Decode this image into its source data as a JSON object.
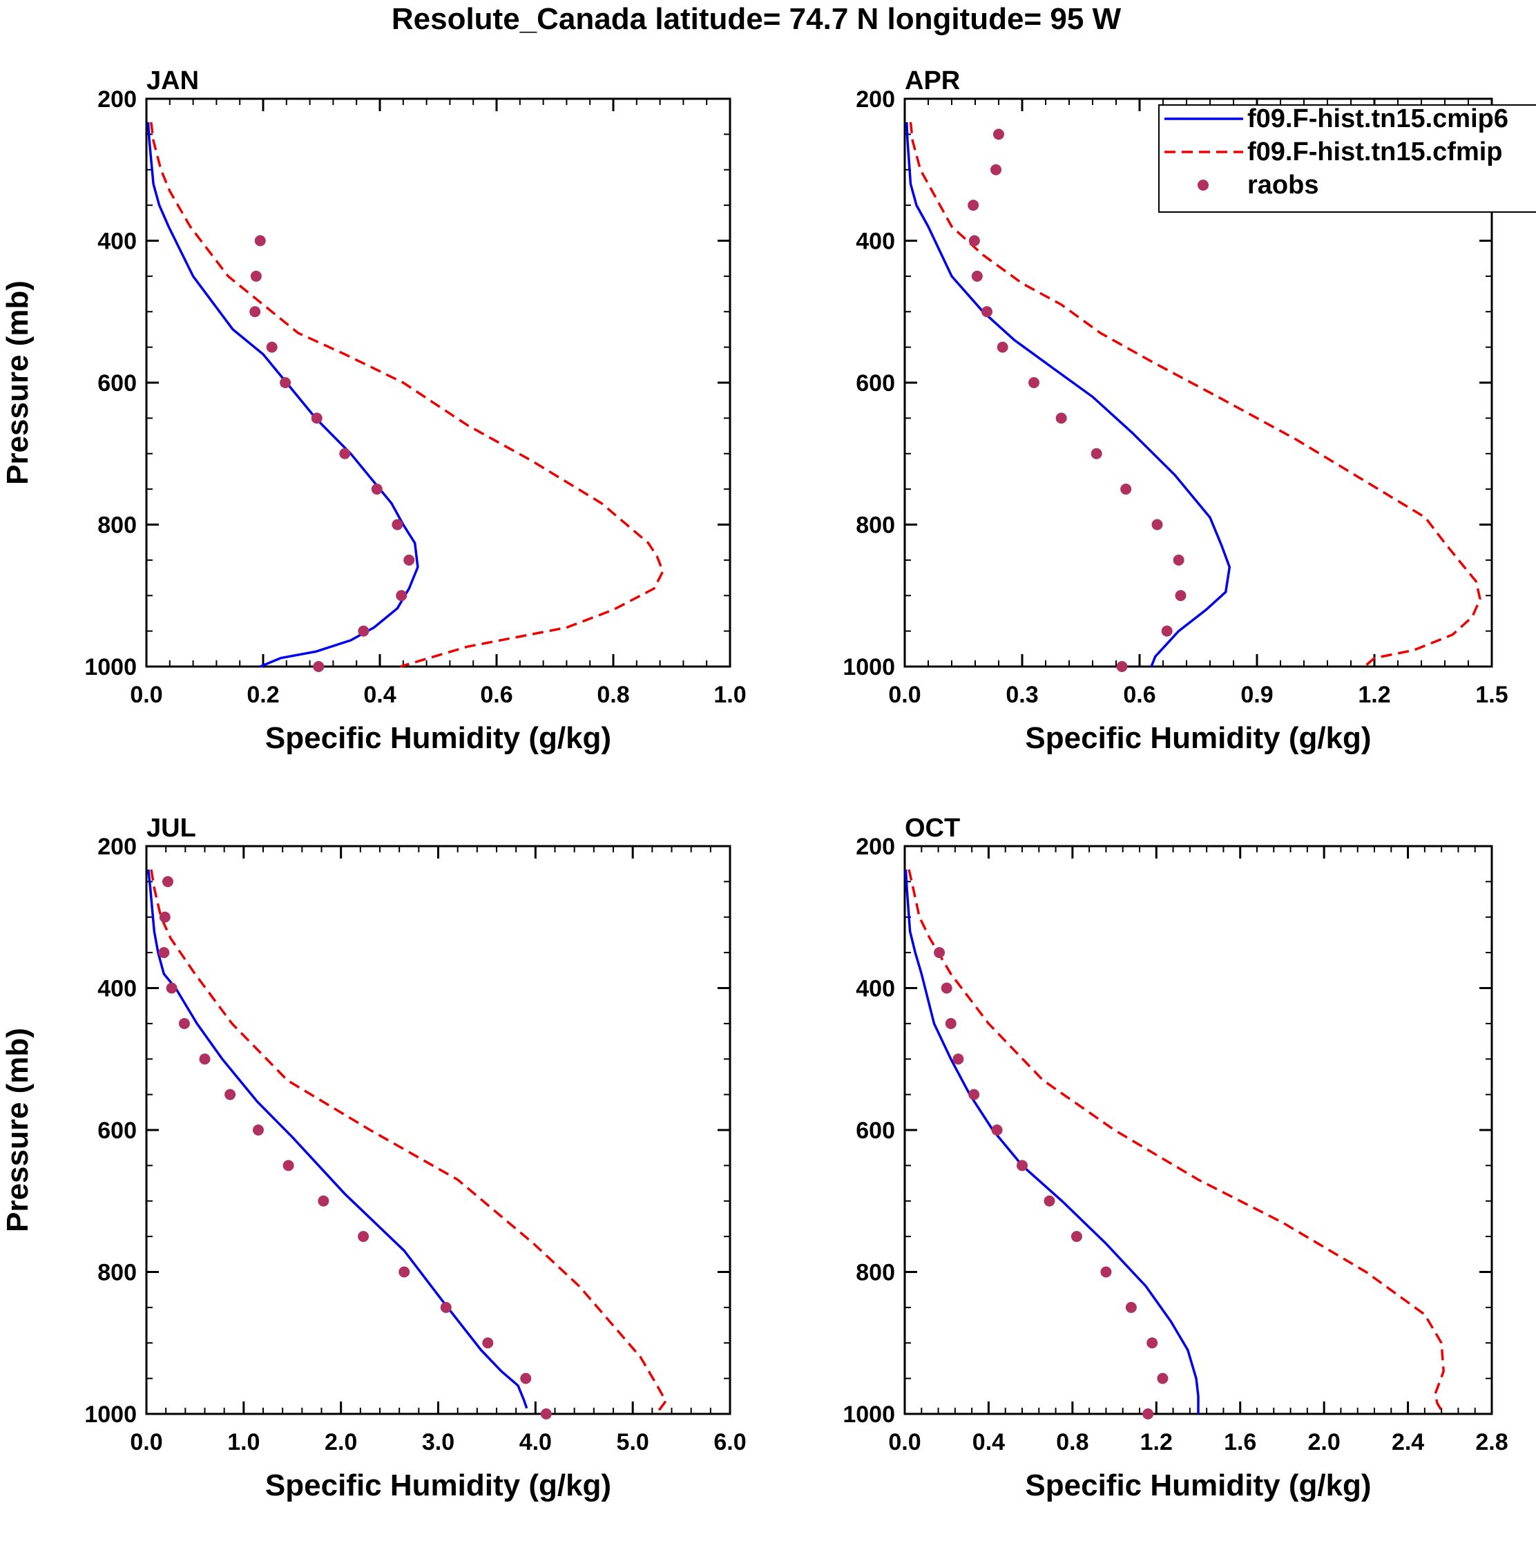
{
  "figure": {
    "title": "Resolute_Canada  latitude= 74.7 N longitude= 95 W"
  },
  "colors": {
    "model1": "#0000ee",
    "model2": "#ee0000",
    "obs": "#b03060"
  },
  "legend": {
    "entries": [
      "f09.F-hist.tn15.cmip6",
      "f09.F-hist.tn15.cfmip",
      "raobs"
    ],
    "placement": "top-right of APR panel"
  },
  "chart_data": [
    {
      "type": "line",
      "title": "JAN",
      "xlabel": "Specific Humidity (g/kg)",
      "ylabel": "Pressure (mb)",
      "xlim": [
        0,
        1.0
      ],
      "ylim": [
        1000,
        200
      ],
      "xticks": [
        0,
        0.2,
        0.4,
        0.6,
        0.8,
        1.0
      ],
      "xticklabels": [
        "0.0",
        "0.2",
        "0.4",
        "0.6",
        "0.8",
        "1.0"
      ],
      "yticks": [
        200,
        400,
        600,
        800,
        1000
      ],
      "yticklabels": [
        "200",
        "400",
        "600",
        "800",
        "1000"
      ],
      "series": [
        {
          "name": "f09.F-hist.tn15.cmip6",
          "style": "solid",
          "x": [
            0.003,
            0.005,
            0.012,
            0.022,
            0.038,
            0.08,
            0.148,
            0.2,
            0.24,
            0.29,
            0.35,
            0.4,
            0.42,
            0.44,
            0.46,
            0.465,
            0.45,
            0.43,
            0.39,
            0.35,
            0.29,
            0.23,
            0.195
          ],
          "y": [
            233,
            259,
            320,
            350,
            380,
            450,
            525,
            560,
            600,
            650,
            700,
            750,
            770,
            800,
            826,
            860,
            890,
            918,
            945,
            963,
            979,
            988,
            1000
          ]
        },
        {
          "name": "f09.F-hist.tn15.cfmip",
          "style": "dashed",
          "x": [
            0.008,
            0.012,
            0.025,
            0.04,
            0.075,
            0.14,
            0.2,
            0.26,
            0.34,
            0.44,
            0.55,
            0.66,
            0.78,
            0.86,
            0.875,
            0.885,
            0.87,
            0.8,
            0.72,
            0.55,
            0.435
          ],
          "y": [
            233,
            259,
            300,
            330,
            380,
            450,
            490,
            530,
            560,
            600,
            660,
            710,
            770,
            826,
            845,
            866,
            890,
            920,
            945,
            972,
            1000
          ]
        },
        {
          "name": "raobs",
          "style": "dots",
          "x": [
            0.195,
            0.188,
            0.186,
            0.215,
            0.238,
            0.292,
            0.34,
            0.395,
            0.43,
            0.45,
            0.437,
            0.372,
            0.295
          ],
          "y": [
            400,
            450,
            500,
            550,
            600,
            650,
            700,
            750,
            800,
            850,
            900,
            950,
            1000
          ]
        }
      ]
    },
    {
      "type": "line",
      "title": "APR",
      "xlabel": "Specific Humidity (g/kg)",
      "ylabel": "",
      "xlim": [
        0,
        1.5
      ],
      "ylim": [
        1000,
        200
      ],
      "xticks": [
        0,
        0.3,
        0.6,
        0.9,
        1.2,
        1.5
      ],
      "xticklabels": [
        "0.0",
        "0.3",
        "0.6",
        "0.9",
        "1.2",
        "1.5"
      ],
      "yticks": [
        200,
        400,
        600,
        800,
        1000
      ],
      "yticklabels": [
        "200",
        "400",
        "600",
        "800",
        "1000"
      ],
      "series": [
        {
          "name": "f09.F-hist.tn15.cmip6",
          "style": "solid",
          "x": [
            0.005,
            0.007,
            0.015,
            0.03,
            0.06,
            0.12,
            0.2,
            0.28,
            0.38,
            0.48,
            0.58,
            0.69,
            0.78,
            0.81,
            0.83,
            0.82,
            0.77,
            0.7,
            0.64,
            0.63
          ],
          "y": [
            233,
            259,
            320,
            350,
            380,
            450,
            500,
            540,
            580,
            620,
            670,
            730,
            790,
            830,
            860,
            895,
            920,
            950,
            986,
            1000
          ]
        },
        {
          "name": "f09.F-hist.tn15.cfmip",
          "style": "dashed",
          "x": [
            0.015,
            0.02,
            0.04,
            0.07,
            0.12,
            0.2,
            0.3,
            0.4,
            0.5,
            0.63,
            0.8,
            1.0,
            1.18,
            1.33,
            1.38,
            1.43,
            1.46,
            1.47,
            1.45,
            1.4,
            1.3,
            1.2,
            1.175
          ],
          "y": [
            233,
            259,
            300,
            330,
            380,
            420,
            460,
            490,
            530,
            570,
            620,
            680,
            740,
            790,
            826,
            860,
            880,
            905,
            930,
            955,
            977,
            988,
            1000
          ]
        },
        {
          "name": "raobs",
          "style": "dots",
          "x": [
            0.24,
            0.233,
            0.175,
            0.178,
            0.185,
            0.21,
            0.25,
            0.33,
            0.4,
            0.49,
            0.565,
            0.645,
            0.7,
            0.705,
            0.67,
            0.555
          ],
          "y": [
            250,
            300,
            350,
            400,
            450,
            500,
            550,
            600,
            650,
            700,
            750,
            800,
            850,
            900,
            950,
            1000
          ]
        }
      ]
    },
    {
      "type": "line",
      "title": "JUL",
      "xlabel": "Specific Humidity (g/kg)",
      "ylabel": "Pressure (mb)",
      "xlim": [
        0,
        6.0
      ],
      "ylim": [
        1000,
        200
      ],
      "xticks": [
        0,
        1,
        2,
        3,
        4,
        5,
        6
      ],
      "xticklabels": [
        "0.0",
        "1.0",
        "2.0",
        "3.0",
        "4.0",
        "5.0",
        "6.0"
      ],
      "yticks": [
        200,
        400,
        600,
        800,
        1000
      ],
      "yticklabels": [
        "200",
        "400",
        "600",
        "800",
        "1000"
      ],
      "series": [
        {
          "name": "f09.F-hist.tn15.cmip6",
          "style": "solid",
          "x": [
            0.02,
            0.04,
            0.08,
            0.12,
            0.18,
            0.3,
            0.52,
            0.78,
            0.96,
            1.14,
            1.5,
            2.04,
            2.65,
            3.04,
            3.44,
            3.65,
            3.82,
            3.88,
            3.91
          ],
          "y": [
            233,
            259,
            320,
            350,
            380,
            400,
            450,
            500,
            530,
            560,
            610,
            690,
            770,
            840,
            910,
            940,
            960,
            980,
            992
          ]
        },
        {
          "name": "f09.F-hist.tn15.cfmip",
          "style": "dashed",
          "x": [
            0.05,
            0.08,
            0.15,
            0.25,
            0.5,
            0.88,
            1.45,
            2.3,
            3.2,
            3.98,
            4.45,
            5.08,
            5.25,
            5.34,
            5.28,
            5.22
          ],
          "y": [
            233,
            259,
            300,
            330,
            380,
            450,
            530,
            600,
            670,
            760,
            820,
            920,
            960,
            982,
            993,
            1000
          ]
        },
        {
          "name": "raobs",
          "style": "dots",
          "x": [
            0.22,
            0.19,
            0.18,
            0.26,
            0.39,
            0.6,
            0.86,
            1.15,
            1.46,
            1.82,
            2.23,
            2.65,
            3.08,
            3.51,
            3.9,
            4.11
          ],
          "y": [
            250,
            300,
            350,
            400,
            450,
            500,
            550,
            600,
            650,
            700,
            750,
            800,
            850,
            900,
            950,
            1000
          ]
        }
      ]
    },
    {
      "type": "line",
      "title": "OCT",
      "xlabel": "Specific Humidity (g/kg)",
      "ylabel": "",
      "xlim": [
        0,
        2.8
      ],
      "ylim": [
        1000,
        200
      ],
      "xticks": [
        0,
        0.4,
        0.8,
        1.2,
        1.6,
        2.0,
        2.4,
        2.8
      ],
      "xticklabels": [
        "0.0",
        "0.4",
        "0.8",
        "1.2",
        "1.6",
        "2.0",
        "2.4",
        "2.8"
      ],
      "yticks": [
        200,
        400,
        600,
        800,
        1000
      ],
      "yticklabels": [
        "200",
        "400",
        "600",
        "800",
        "1000"
      ],
      "series": [
        {
          "name": "f09.F-hist.tn15.cmip6",
          "style": "solid",
          "x": [
            0.005,
            0.01,
            0.025,
            0.05,
            0.08,
            0.14,
            0.22,
            0.31,
            0.42,
            0.56,
            0.75,
            0.96,
            1.15,
            1.27,
            1.35,
            1.39,
            1.4,
            1.4
          ],
          "y": [
            233,
            259,
            320,
            350,
            380,
            450,
            500,
            550,
            600,
            650,
            700,
            760,
            820,
            870,
            910,
            950,
            975,
            1000
          ]
        },
        {
          "name": "f09.F-hist.tn15.cfmip",
          "style": "dashed",
          "x": [
            0.02,
            0.04,
            0.07,
            0.12,
            0.22,
            0.4,
            0.66,
            1.0,
            1.4,
            1.8,
            2.2,
            2.48,
            2.56,
            2.57,
            2.53,
            2.54,
            2.56
          ],
          "y": [
            233,
            259,
            300,
            330,
            380,
            450,
            530,
            600,
            670,
            730,
            800,
            860,
            900,
            940,
            972,
            985,
            995
          ]
        },
        {
          "name": "raobs",
          "style": "dots",
          "x": [
            0.165,
            0.2,
            0.22,
            0.255,
            0.33,
            0.44,
            0.56,
            0.69,
            0.82,
            0.96,
            1.08,
            1.18,
            1.23,
            1.16
          ],
          "y": [
            350,
            400,
            450,
            500,
            550,
            600,
            650,
            700,
            750,
            800,
            850,
            900,
            950,
            1000
          ]
        }
      ]
    }
  ]
}
